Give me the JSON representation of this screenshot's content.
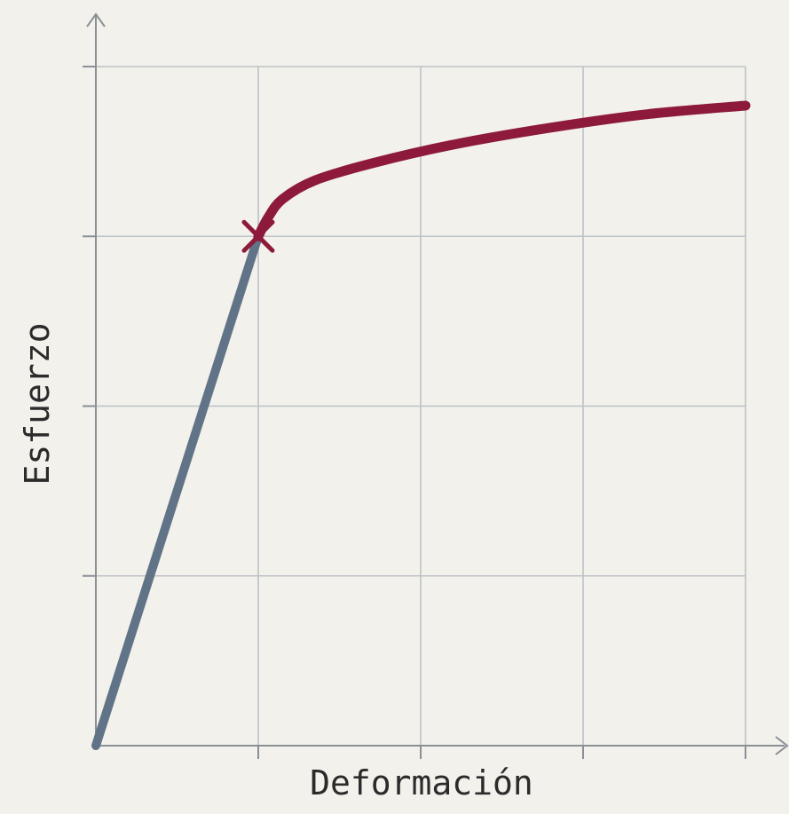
{
  "chart_data": {
    "type": "line",
    "xlabel": "Deformación",
    "ylabel": "Esfuerzo",
    "xlim": [
      0,
      4
    ],
    "ylim": [
      0,
      4
    ],
    "grid": true,
    "series": [
      {
        "color": "#617487",
        "x": [
          0,
          1
        ],
        "y": [
          0,
          3
        ]
      },
      {
        "color": "#8d1a3b",
        "x": [
          1,
          1.06,
          1.15,
          1.35,
          1.7,
          2.2,
          2.8,
          3.4,
          4.0
        ],
        "y": [
          3,
          3.11,
          3.22,
          3.33,
          3.43,
          3.54,
          3.64,
          3.72,
          3.77
        ]
      }
    ],
    "annotations": [
      {
        "marker": "x",
        "x": 1,
        "y": 3,
        "color": "#8d1a3b"
      }
    ]
  }
}
